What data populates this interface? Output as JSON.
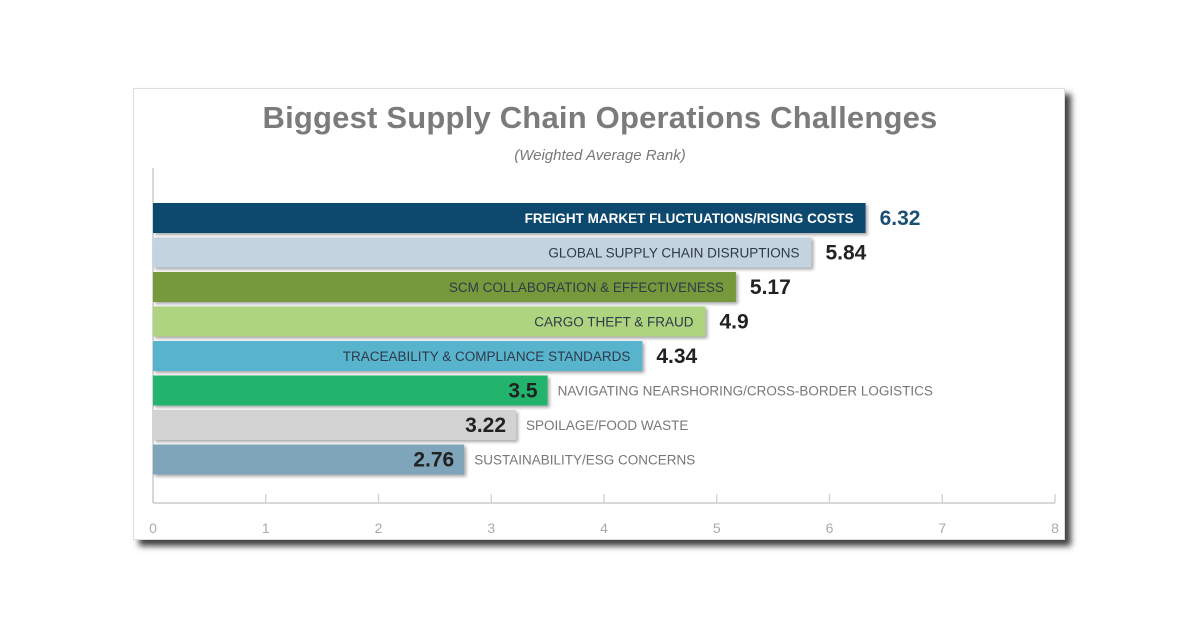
{
  "chart_data": {
    "type": "bar",
    "orientation": "horizontal",
    "title": "Biggest Supply Chain Operations Challenges",
    "subtitle": "(Weighted Average Rank)",
    "categories": [
      "FREIGHT MARKET FLUCTUATIONS/RISING COSTS",
      "GLOBAL SUPPLY CHAIN DISRUPTIONS",
      "SCM COLLABORATION & EFFECTIVENESS",
      "CARGO THEFT & FRAUD",
      "TRACEABILITY & COMPLIANCE STANDARDS",
      "NAVIGATING NEARSHORING/CROSS-BORDER LOGISTICS",
      "SPOILAGE/FOOD WASTE",
      "SUSTAINABILITY/ESG CONCERNS"
    ],
    "values": [
      6.32,
      5.84,
      5.17,
      4.9,
      4.34,
      3.5,
      3.22,
      2.76
    ],
    "value_labels": [
      "6.32",
      "5.84",
      "5.17",
      "4.9",
      "4.34",
      "3.5",
      "3.22",
      "2.76"
    ],
    "colors": [
      "#0d4a6e",
      "#c3d3df",
      "#76993a",
      "#aed47f",
      "#58b3cc",
      "#22b46c",
      "#d2d2d2",
      "#7fa5ba"
    ],
    "xlim": [
      0,
      8
    ],
    "xticks": [
      "0",
      "1",
      "2",
      "3",
      "4",
      "5",
      "6",
      "7",
      "8"
    ],
    "grid": false
  }
}
